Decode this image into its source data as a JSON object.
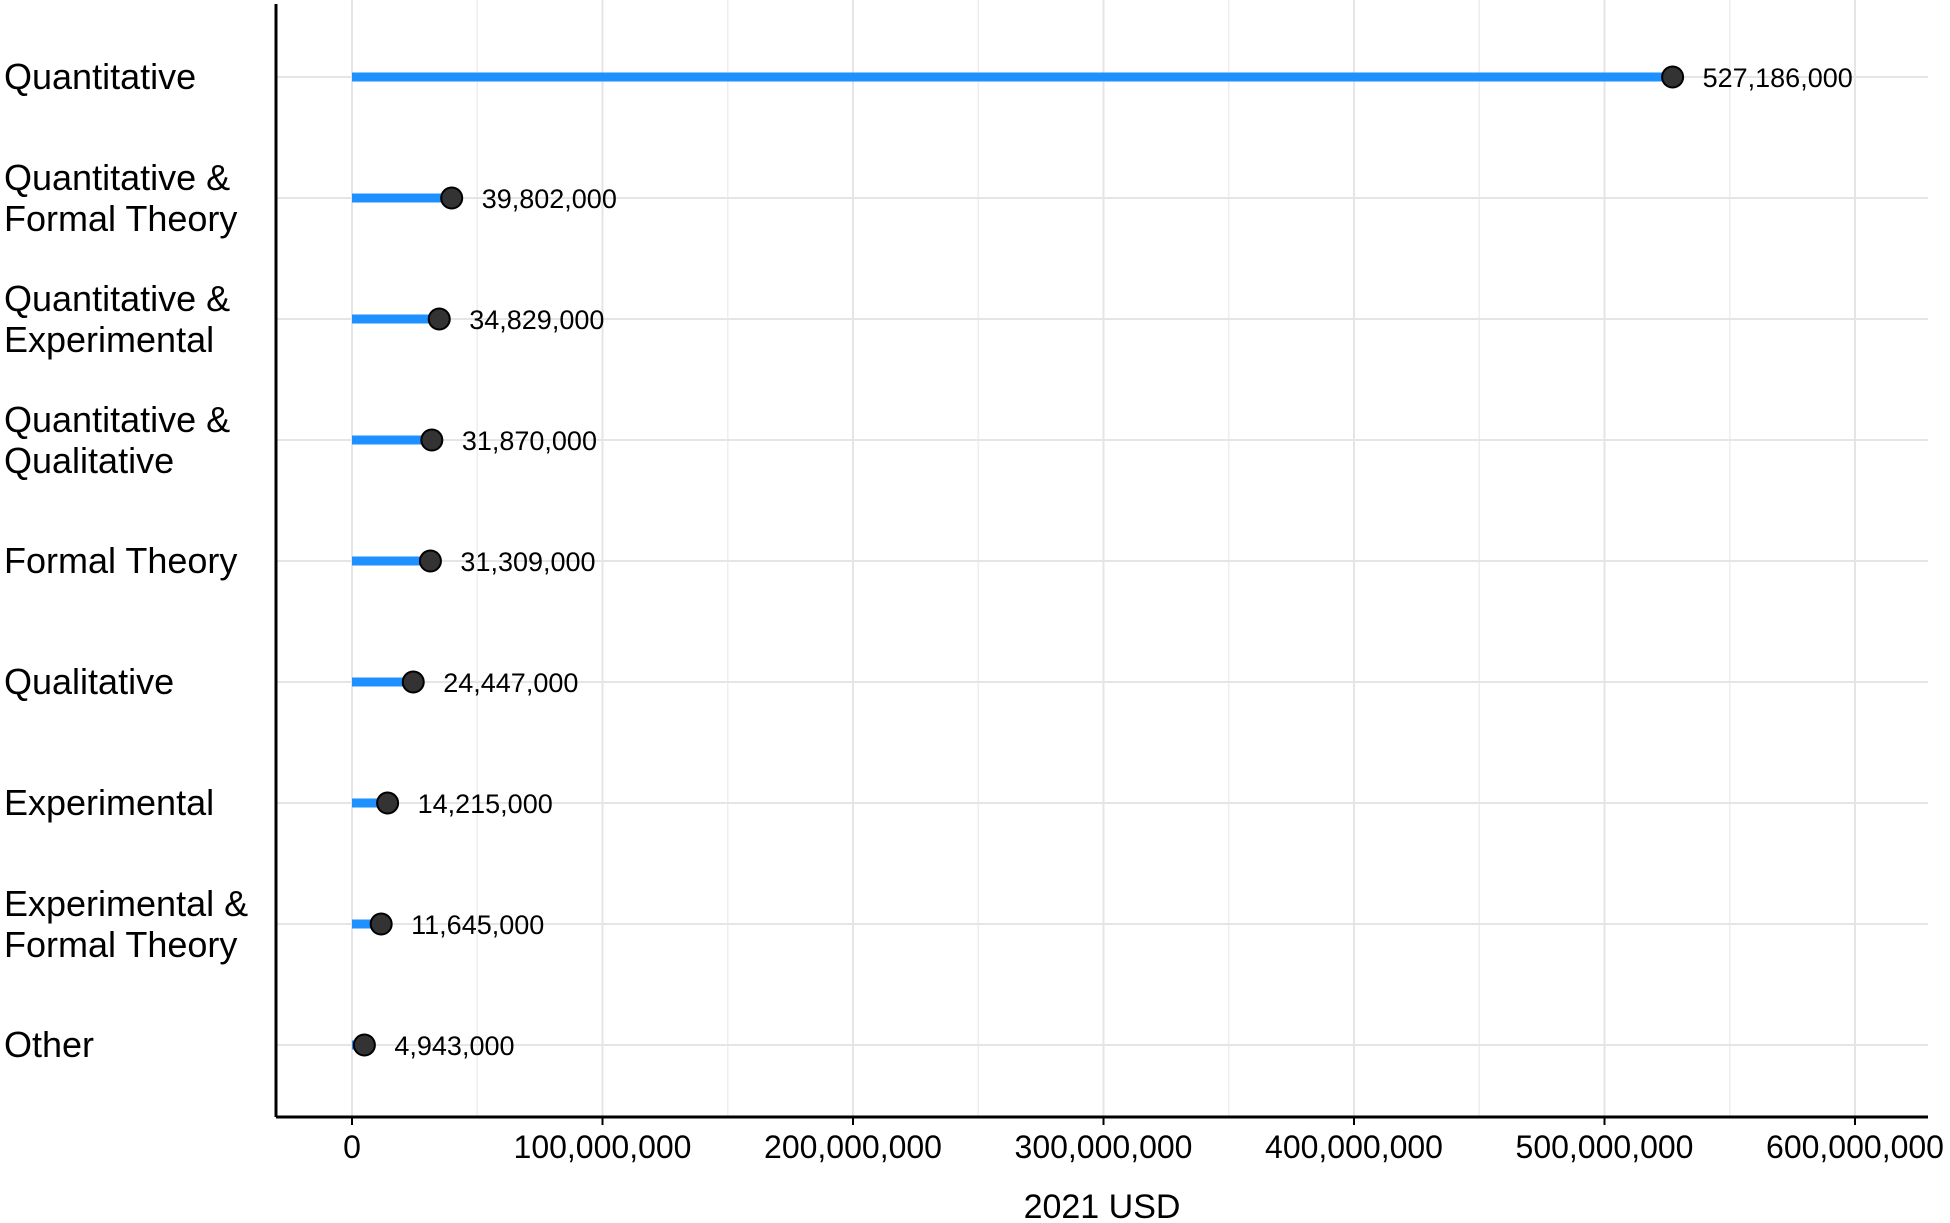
{
  "chart_data": {
    "type": "lollipop",
    "orientation": "horizontal",
    "title": "",
    "xlabel": "2021 USD",
    "ylabel": "",
    "categories": [
      [
        "Quantitative"
      ],
      [
        "Quantitative &",
        "Formal Theory"
      ],
      [
        "Quantitative &",
        "Experimental"
      ],
      [
        "Quantitative &",
        "Qualitative"
      ],
      [
        "Formal Theory"
      ],
      [
        "Qualitative"
      ],
      [
        "Experimental"
      ],
      [
        "Experimental &",
        "Formal Theory"
      ],
      [
        "Other"
      ]
    ],
    "values": [
      527186000,
      39802000,
      34829000,
      31870000,
      31309000,
      24447000,
      14215000,
      11645000,
      4943000
    ],
    "value_labels": [
      "527,186,000",
      "39,802,000",
      "34,829,000",
      "31,870,000",
      "31,309,000",
      "24,447,000",
      "14,215,000",
      "11,645,000",
      "4,943,000"
    ],
    "x_ticks": [
      0,
      100000000,
      200000000,
      300000000,
      400000000,
      500000000,
      600000000
    ],
    "x_tick_labels": [
      "0",
      "100,000,000",
      "200,000,000",
      "300,000,000",
      "400,000,000",
      "500,000,000",
      "600,000,000"
    ],
    "xlim": [
      -30000000,
      630000000
    ],
    "grid": true,
    "legend": "none",
    "colors": {
      "stem": "#1E90FF",
      "point_fill": "#333333",
      "point_stroke": "#000000",
      "grid": "#E5E5E5",
      "axis": "#000000"
    }
  }
}
